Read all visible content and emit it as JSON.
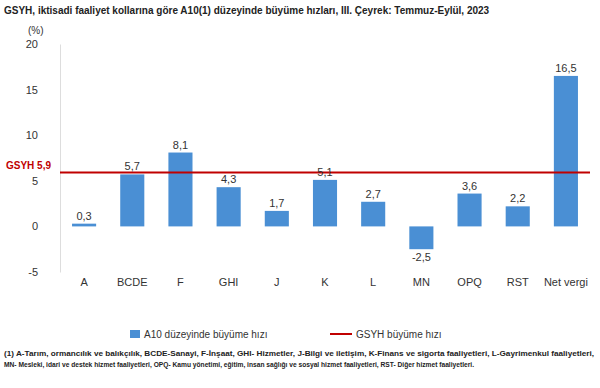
{
  "chart_data": {
    "type": "bar",
    "title": "GSYH, iktisadi faaliyet kollarına göre A10(1) düzeyinde büyüme hızları, III. Çeyrek: Temmuz-Eylül, 2023",
    "y_label": "(%)",
    "categories": [
      "A",
      "BCDE",
      "F",
      "GHI",
      "J",
      "K",
      "L",
      "MN",
      "OPQ",
      "RST",
      "Net vergi"
    ],
    "series": [
      {
        "name": "A10 düzeyinde büyüme hızı",
        "color": "#4a8fd4",
        "values": [
          0.3,
          5.7,
          8.1,
          4.3,
          1.7,
          5.1,
          2.7,
          -2.5,
          3.6,
          2.2,
          16.5
        ],
        "value_labels": [
          "0,3",
          "5,7",
          "8,1",
          "4,3",
          "1,7",
          "5,1",
          "2,7",
          "-2,5",
          "3,6",
          "2,2",
          "16,5"
        ]
      }
    ],
    "hline": {
      "name": "GSYH büyüme hızı",
      "value": 5.9,
      "label": "GSYH 5,9",
      "color": "#c00000"
    },
    "ylim": [
      -5,
      20
    ],
    "yticks": [
      -5,
      0,
      5,
      10,
      15,
      20
    ],
    "grid": false,
    "data_labels": true,
    "legend": "bottom",
    "footnote": [
      "(1) A-Tarım, ormancılık ve balıkçılık, BCDE-Sanayi, F-İnşaat, GHI- Hizmetler, J-Bilgi ve iletişim, K-Finans ve sigorta faaliyetleri, L-Gayrimenkul faaliyetleri,",
      "MN- Mesleki, idari ve destek hizmet faaliyetleri, OPQ- Kamu yönetimi, eğitim, insan sağlığı ve sosyal hizmet faaliyetleri, RST- Diğer hizmet faaliyetleri."
    ]
  }
}
